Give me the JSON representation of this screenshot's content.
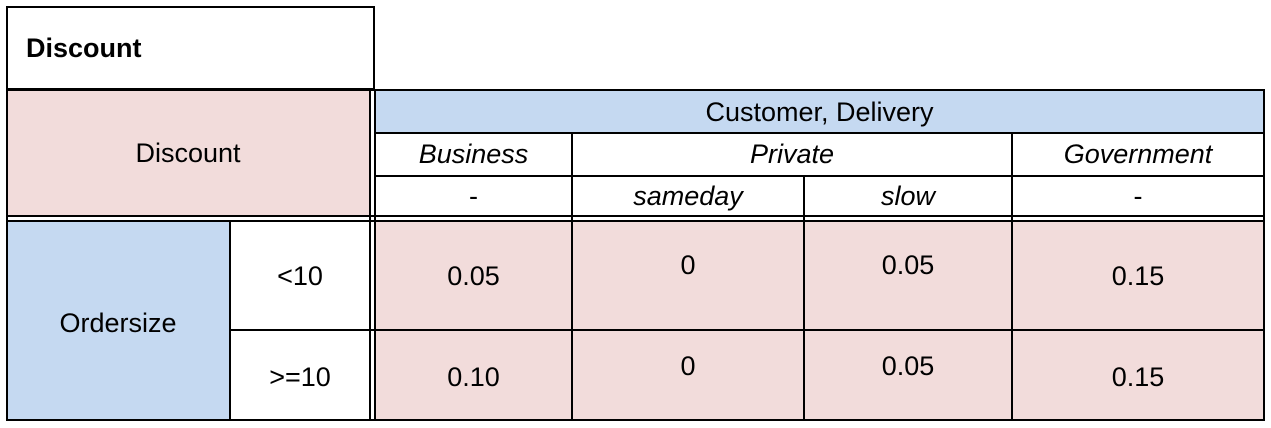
{
  "table": {
    "title": "Discount",
    "corner_label": "Discount",
    "group_header": "Customer, Delivery",
    "customers": {
      "business": "Business",
      "private": "Private",
      "government": "Government"
    },
    "deliveries": {
      "business": "-",
      "sameday": "sameday",
      "slow": "slow",
      "government": "-"
    },
    "row_header": "Ordersize",
    "rows": [
      {
        "label": "<10",
        "business": "0.05",
        "sameday": "0",
        "slow": "0.05",
        "government": "0.15"
      },
      {
        "label": ">=10",
        "business": "0.10",
        "sameday": "0",
        "slow": "0.05",
        "government": "0.15"
      }
    ]
  },
  "colors": {
    "pink": "#f2dcdb",
    "blue": "#c5d9f1",
    "border": "#000000",
    "white": "#ffffff"
  }
}
